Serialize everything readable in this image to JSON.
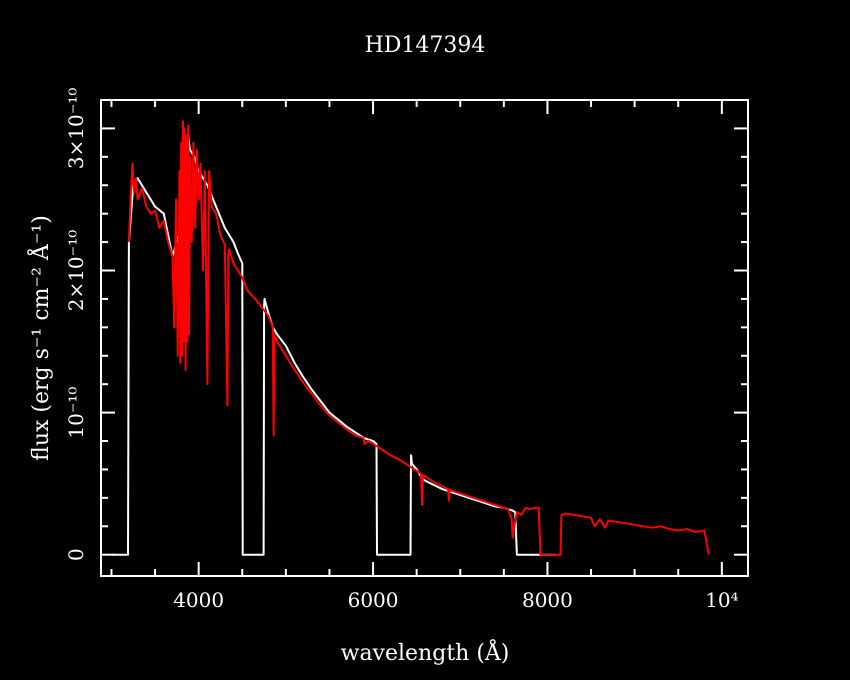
{
  "chart_data": {
    "type": "line",
    "title": "HD147394",
    "xlabel": "wavelength (Å)",
    "ylabel": "flux (erg s⁻¹ cm⁻² Å⁻¹)",
    "xlim": [
      2880,
      10300
    ],
    "ylim": [
      -1.5e-11,
      3.2e-10
    ],
    "x_ticks": [
      {
        "value": 4000,
        "label": "4000"
      },
      {
        "value": 6000,
        "label": "6000"
      },
      {
        "value": 8000,
        "label": "8000"
      },
      {
        "value": 10000,
        "label": "10⁴"
      }
    ],
    "y_ticks": [
      {
        "value": 0,
        "label": "0"
      },
      {
        "value": 1e-10,
        "label": "10⁻¹⁰"
      },
      {
        "value": 2e-10,
        "label": "2×10⁻¹⁰"
      },
      {
        "value": 3e-10,
        "label": "3×10⁻¹⁰"
      }
    ],
    "colors": {
      "background": "#000000",
      "axes": "#ffffff",
      "series_observed": "#ffffff",
      "series_model": "#ff0000"
    },
    "series": [
      {
        "color": "#ffffff",
        "x": [
          3000,
          3180,
          3190,
          3200,
          3250,
          3300,
          3400,
          3500,
          3600,
          3700,
          3800,
          3850,
          3880,
          3900,
          3950,
          4000,
          4100,
          4200,
          4300,
          4350,
          4400,
          4450,
          4500,
          4505,
          4510,
          4515,
          4550,
          4600,
          4700,
          4740,
          4745,
          4750,
          4755,
          4800,
          4850,
          4900,
          5000,
          5100,
          5200,
          5300,
          5400,
          5500,
          5600,
          5700,
          5800,
          5900,
          6000,
          6040,
          6045,
          6050,
          6055,
          6100,
          6200,
          6300,
          6400,
          6430,
          6435,
          6440,
          6445,
          6500,
          6560,
          6600,
          6700,
          6800,
          6900,
          7000,
          7100,
          7200,
          7300,
          7400,
          7500,
          7600,
          7630,
          7650,
          7700,
          7750,
          7800,
          7850,
          7880,
          7900,
          7920,
          7950,
          8000,
          8050,
          8100
        ],
        "y": [
          0,
          0,
          0,
          2.2e-10,
          2.6e-10,
          2.65e-10,
          2.55e-10,
          2.45e-10,
          2.4e-10,
          2.1e-10,
          2.3e-10,
          2.9e-10,
          2.95e-10,
          2.85e-10,
          2.8e-10,
          2.7e-10,
          2.6e-10,
          2.45e-10,
          2.3e-10,
          2.25e-10,
          2.2e-10,
          2.12e-10,
          2.05e-10,
          0,
          0,
          0,
          0,
          0,
          0,
          0,
          0,
          1.75e-10,
          1.8e-10,
          1.7e-10,
          1.6e-10,
          1.55e-10,
          1.47e-10,
          1.35e-10,
          1.25e-10,
          1.16e-10,
          1.08e-10,
          1e-10,
          9.5e-11,
          9e-11,
          8.6e-11,
          8.2e-11,
          8e-11,
          7.8e-11,
          0,
          0,
          0,
          0,
          0,
          0,
          0,
          0,
          7e-11,
          6.8e-11,
          6.4e-11,
          6e-11,
          5.4e-11,
          5.2e-11,
          4.9e-11,
          4.6e-11,
          4.4e-11,
          4.2e-11,
          4e-11,
          3.8e-11,
          3.6e-11,
          3.4e-11,
          3.3e-11,
          3.1e-11,
          3e-11,
          0,
          0,
          0,
          0,
          0,
          0,
          0,
          0,
          0,
          0,
          0,
          0
        ]
      },
      {
        "color": "#ff0000",
        "x": [
          3200,
          3220,
          3240,
          3260,
          3280,
          3300,
          3350,
          3400,
          3450,
          3500,
          3550,
          3600,
          3650,
          3700,
          3720,
          3740,
          3760,
          3780,
          3790,
          3800,
          3810,
          3820,
          3830,
          3840,
          3850,
          3860,
          3870,
          3880,
          3890,
          3900,
          3920,
          3940,
          3960,
          3980,
          4000,
          4020,
          4050,
          4070,
          4100,
          4120,
          4150,
          4200,
          4250,
          4300,
          4330,
          4340,
          4350,
          4400,
          4450,
          4500,
          4550,
          4600,
          4650,
          4700,
          4750,
          4800,
          4850,
          4860,
          4870,
          4900,
          4950,
          5000,
          5100,
          5200,
          5300,
          5400,
          5500,
          5600,
          5700,
          5800,
          5850,
          5890,
          5900,
          5950,
          6000,
          6100,
          6200,
          6300,
          6400,
          6500,
          6550,
          6562,
          6570,
          6600,
          6700,
          6800,
          6860,
          6870,
          6880,
          6900,
          7000,
          7100,
          7200,
          7300,
          7400,
          7500,
          7550,
          7590,
          7600,
          7620,
          7650,
          7700,
          7750,
          7800,
          7850,
          7900,
          7920,
          8000,
          8100,
          8150,
          8160,
          8200,
          8300,
          8400,
          8500,
          8542,
          8600,
          8662,
          8700,
          8800,
          8900,
          9000,
          9100,
          9200,
          9300,
          9400,
          9500,
          9600,
          9700,
          9800,
          9850
        ],
        "y": [
          2.2e-10,
          2.5e-10,
          2.75e-10,
          2.55e-10,
          2.65e-10,
          2.5e-10,
          2.58e-10,
          2.45e-10,
          2.4e-10,
          2.42e-10,
          2.3e-10,
          2.35e-10,
          2.2e-10,
          2.1e-10,
          1.6e-10,
          2.5e-10,
          1.4e-10,
          2.7e-10,
          1.35e-10,
          2.9e-10,
          1.4e-10,
          3.05e-10,
          1.5e-10,
          3e-10,
          1.3e-10,
          2.95e-10,
          1.5e-10,
          3.02e-10,
          1.55e-10,
          2.8e-10,
          2.2e-10,
          2.9e-10,
          2.3e-10,
          2.85e-10,
          2.5e-10,
          2.75e-10,
          2e-10,
          2.7e-10,
          1.2e-10,
          2.7e-10,
          2.45e-10,
          2.4e-10,
          2.25e-10,
          2.18e-10,
          1.05e-10,
          2.1e-10,
          2.15e-10,
          2.05e-10,
          2e-10,
          1.95e-10,
          1.87e-10,
          1.83e-10,
          1.8e-10,
          1.76e-10,
          1.72e-10,
          1.68e-10,
          1.6e-10,
          8.4e-11,
          1.55e-10,
          1.5e-10,
          1.45e-10,
          1.4e-10,
          1.3e-10,
          1.21e-10,
          1.13e-10,
          1.05e-10,
          9.8e-11,
          9.3e-11,
          8.8e-11,
          8.4e-11,
          8.3e-11,
          8.2e-11,
          7.8e-11,
          8e-11,
          7.8e-11,
          7.4e-11,
          7e-11,
          6.7e-11,
          6.3e-11,
          5.9e-11,
          5.7e-11,
          3.5e-11,
          5.6e-11,
          5.5e-11,
          5.1e-11,
          4.8e-11,
          4.6e-11,
          3.8e-11,
          4.6e-11,
          4.5e-11,
          4.3e-11,
          4.1e-11,
          3.9e-11,
          3.7e-11,
          3.5e-11,
          3.3e-11,
          3.2e-11,
          2.5e-11,
          1.2e-11,
          2e-11,
          3e-11,
          2.8e-11,
          3.3e-11,
          3.2e-11,
          3.3e-11,
          3.3e-11,
          0,
          0,
          0,
          0,
          2.8e-11,
          2.9e-11,
          2.8e-11,
          2.7e-11,
          2.6e-11,
          2e-11,
          2.5e-11,
          1.9e-11,
          2.4e-11,
          2.3e-11,
          2.2e-11,
          2.1e-11,
          2e-11,
          1.9e-11,
          2e-11,
          1.8e-11,
          1.7e-11,
          1.8e-11,
          1.6e-11,
          1.7e-11,
          0
        ]
      }
    ]
  }
}
